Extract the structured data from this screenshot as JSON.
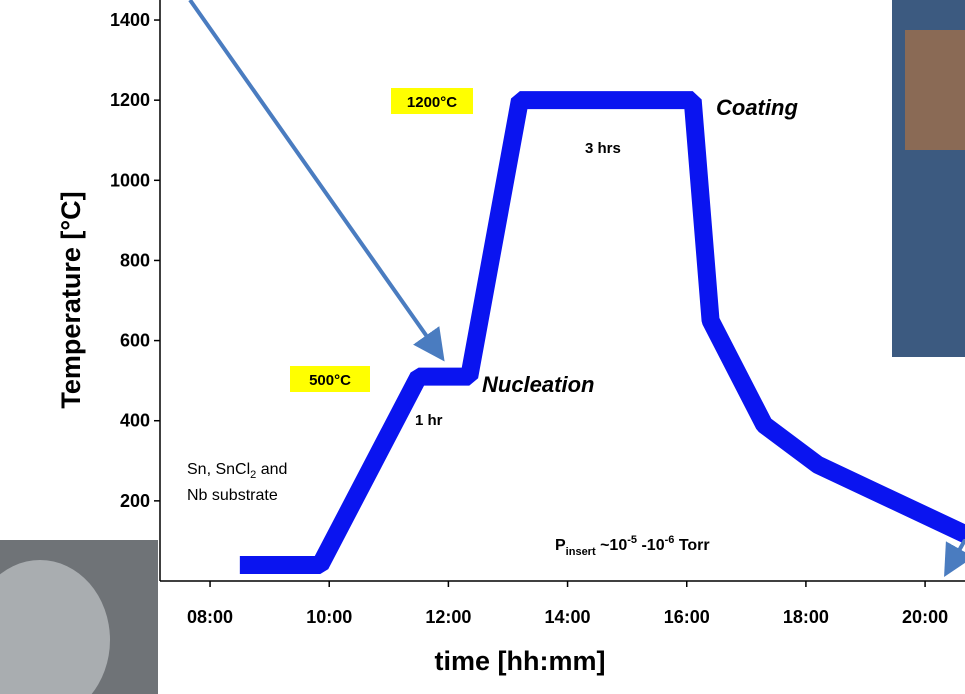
{
  "chart_data": {
    "type": "line",
    "x_label": "time [hh:mm]",
    "y_label": "Temperature [°C]",
    "x": [
      8.5,
      9.85,
      11.5,
      12.35,
      13.2,
      16.1,
      16.4,
      17.3,
      18.2,
      20.7
    ],
    "series": [
      {
        "color": "#0a14f0",
        "values": [
          40,
          40,
          510,
          510,
          1200,
          1200,
          650,
          390,
          290,
          115
        ]
      }
    ],
    "xlim": [
      7.16,
      20.67
    ],
    "xticks": [
      {
        "value": 8,
        "label": "08:00"
      },
      {
        "value": 10,
        "label": "10:00"
      },
      {
        "value": 12,
        "label": "12:00"
      },
      {
        "value": 14,
        "label": "14:00"
      },
      {
        "value": 16,
        "label": "16:00"
      },
      {
        "value": 18,
        "label": "18:00"
      },
      {
        "value": 20,
        "label": "20:00"
      }
    ],
    "ylim": [
      0,
      1450
    ],
    "yticks": [
      200,
      400,
      600,
      800,
      1000,
      1200,
      1400
    ],
    "annotations": {
      "peak": "1200°C",
      "coating": "Coating",
      "hold_long": "3  hrs",
      "nucleation_temp": "500°C",
      "nucleation": "Nucleation",
      "hold_short": "1 hr",
      "materials": [
        "Sn, SnCl",
        "2",
        " and",
        "Nb  substrate"
      ],
      "pressure": [
        "P",
        "insert",
        " ~10",
        "-5",
        " -10",
        "-6",
        " Torr"
      ]
    }
  }
}
